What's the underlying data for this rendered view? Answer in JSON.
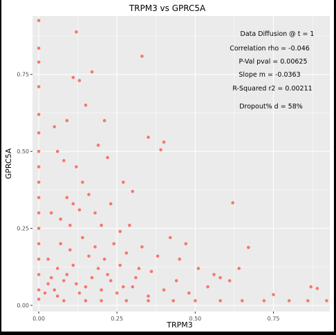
{
  "chart_data": {
    "type": "scatter",
    "title": "TRPM3 vs GPRC5A",
    "xlabel": "TRPM3",
    "ylabel": "GPRC5A",
    "xlim": [
      -0.02,
      0.93
    ],
    "ylim": [
      -0.02,
      0.94
    ],
    "x_ticks": [
      0.0,
      0.25,
      0.5,
      0.75
    ],
    "x_tick_labels": [
      "0.00",
      "0.25",
      "0.50",
      "0.75"
    ],
    "y_ticks": [
      0.0,
      0.25,
      0.5,
      0.75
    ],
    "y_tick_labels": [
      "0.00",
      "0.25",
      "0.50",
      "0.75"
    ],
    "grid": true,
    "panel_background": "#ebebeb",
    "point_color": "#f8766d",
    "annotations": [
      "Data Diffusion @ t = 1",
      "Correlation rho = -0.046",
      "P-Val pval = 0.00625",
      "Slope m = -0.0363",
      "R-Squared r2 = 0.00211",
      "Dropout% d =  58%"
    ],
    "points": [
      [
        0.12,
        0.888
      ],
      [
        0.33,
        0.809
      ],
      [
        0.0,
        0.925
      ],
      [
        0.0,
        0.835
      ],
      [
        0.0,
        0.79
      ],
      [
        0.17,
        0.758
      ],
      [
        0.11,
        0.74
      ],
      [
        0.13,
        0.73
      ],
      [
        0.0,
        0.71
      ],
      [
        0.0,
        0.62
      ],
      [
        0.0,
        0.56
      ],
      [
        0.0,
        0.5
      ],
      [
        0.0,
        0.45
      ],
      [
        0.0,
        0.4
      ],
      [
        0.0,
        0.35
      ],
      [
        0.0,
        0.3
      ],
      [
        0.0,
        0.25
      ],
      [
        0.0,
        0.2
      ],
      [
        0.0,
        0.15
      ],
      [
        0.0,
        0.1
      ],
      [
        0.0,
        0.05
      ],
      [
        0.0,
        0.02
      ],
      [
        0.35,
        0.546
      ],
      [
        0.4,
        0.53
      ],
      [
        0.39,
        0.505
      ],
      [
        0.62,
        0.333
      ],
      [
        0.67,
        0.188
      ],
      [
        0.87,
        0.06
      ],
      [
        0.89,
        0.055
      ],
      [
        0.75,
        0.035
      ],
      [
        0.64,
        0.12
      ],
      [
        0.61,
        0.08
      ],
      [
        0.58,
        0.09
      ],
      [
        0.51,
        0.12
      ],
      [
        0.45,
        0.15
      ],
      [
        0.47,
        0.2
      ],
      [
        0.42,
        0.22
      ],
      [
        0.3,
        0.37
      ],
      [
        0.27,
        0.4
      ],
      [
        0.22,
        0.48
      ],
      [
        0.19,
        0.52
      ],
      [
        0.21,
        0.6
      ],
      [
        0.15,
        0.65
      ],
      [
        0.09,
        0.6
      ],
      [
        0.05,
        0.58
      ],
      [
        0.08,
        0.47
      ],
      [
        0.06,
        0.5
      ],
      [
        0.23,
        0.33
      ],
      [
        0.18,
        0.3
      ],
      [
        0.14,
        0.22
      ],
      [
        0.1,
        0.18
      ],
      [
        0.06,
        0.12
      ],
      [
        0.04,
        0.09
      ],
      [
        0.08,
        0.08
      ],
      [
        0.12,
        0.07
      ],
      [
        0.15,
        0.06
      ],
      [
        0.2,
        0.05
      ],
      [
        0.25,
        0.04
      ],
      [
        0.3,
        0.06
      ],
      [
        0.35,
        0.03
      ],
      [
        0.05,
        0.05
      ],
      [
        0.03,
        0.15
      ],
      [
        0.07,
        0.2
      ],
      [
        0.1,
        0.26
      ],
      [
        0.13,
        0.31
      ],
      [
        0.16,
        0.16
      ],
      [
        0.19,
        0.12
      ],
      [
        0.22,
        0.1
      ],
      [
        0.26,
        0.13
      ],
      [
        0.28,
        0.17
      ],
      [
        0.31,
        0.09
      ],
      [
        0.36,
        0.11
      ],
      [
        0.4,
        0.05
      ],
      [
        0.44,
        0.08
      ],
      [
        0.48,
        0.04
      ],
      [
        0.54,
        0.06
      ],
      [
        0.56,
        0.1
      ],
      [
        0.24,
        0.2
      ],
      [
        0.26,
        0.24
      ],
      [
        0.29,
        0.26
      ],
      [
        0.33,
        0.19
      ],
      [
        0.38,
        0.16
      ],
      [
        0.02,
        0.04
      ],
      [
        0.03,
        0.07
      ],
      [
        0.06,
        0.03
      ],
      [
        0.09,
        0.1
      ],
      [
        0.11,
        0.13
      ],
      [
        0.13,
        0.04
      ],
      [
        0.17,
        0.09
      ],
      [
        0.21,
        0.15
      ],
      [
        0.09,
        0.35
      ],
      [
        0.14,
        0.4
      ],
      [
        0.12,
        0.45
      ],
      [
        0.04,
        0.3
      ],
      [
        0.07,
        0.28
      ],
      [
        0.11,
        0.33
      ],
      [
        0.16,
        0.36
      ],
      [
        0.2,
        0.26
      ],
      [
        0.23,
        0.08
      ],
      [
        0.18,
        0.19
      ],
      [
        0.27,
        0.06
      ],
      [
        0.32,
        0.12
      ],
      [
        0.08,
        0.015
      ],
      [
        0.2,
        0.015
      ],
      [
        0.35,
        0.015
      ],
      [
        0.5,
        0.015
      ],
      [
        0.65,
        0.015
      ],
      [
        0.8,
        0.015
      ],
      [
        0.92,
        0.015
      ],
      [
        0.15,
        0.015
      ],
      [
        0.28,
        0.015
      ],
      [
        0.43,
        0.015
      ],
      [
        0.58,
        0.015
      ],
      [
        0.72,
        0.015
      ],
      [
        0.86,
        0.015
      ]
    ]
  }
}
